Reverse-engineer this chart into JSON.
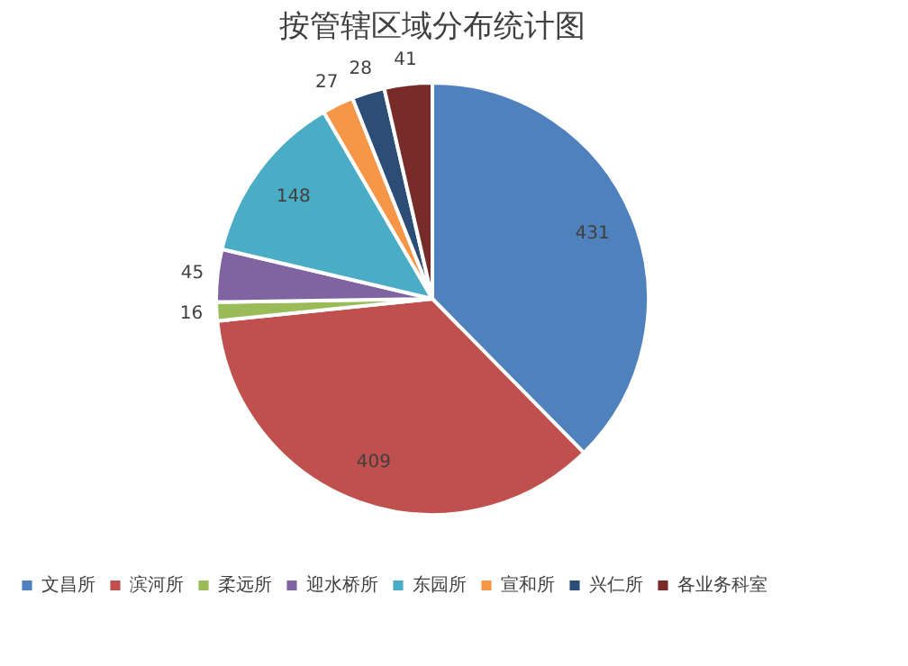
{
  "chart_data": {
    "type": "pie",
    "title": "按管辖区域分布统计图",
    "categories": [
      "文昌所",
      "滨河所",
      "柔远所",
      "迎水桥所",
      "东园所",
      "宣和所",
      "兴仁所",
      "各业务科室"
    ],
    "values": [
      431,
      409,
      16,
      45,
      148,
      27,
      28,
      41
    ],
    "colors": [
      "#4f81bd",
      "#c0504d",
      "#9bbb59",
      "#8064a2",
      "#4bacc6",
      "#f79646",
      "#2c4d75",
      "#772c2a"
    ],
    "data_labels": true,
    "legend": "bottom"
  }
}
